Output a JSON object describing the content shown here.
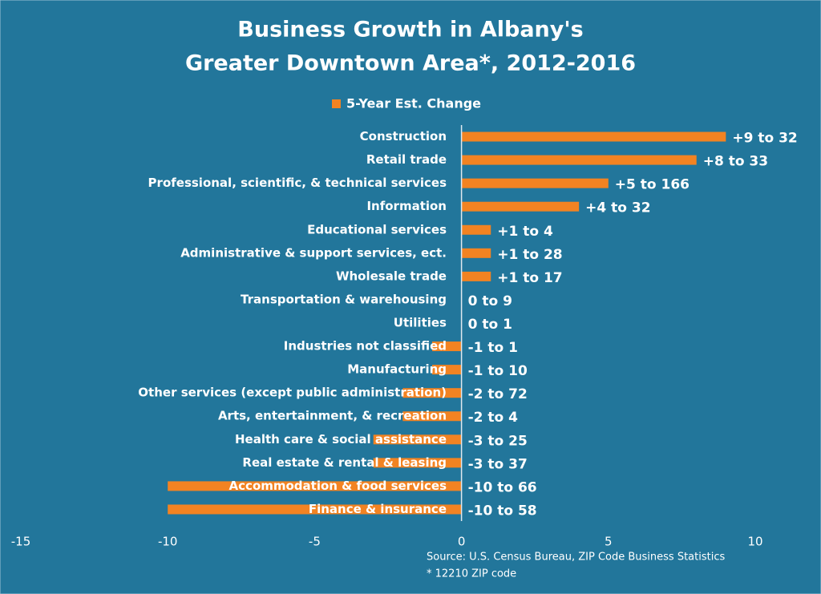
{
  "chart_data": {
    "type": "hbar",
    "title": [
      "Business Growth in Albany's",
      "Greater Downtown Area*, 2012-2016"
    ],
    "categories": [
      "Construction",
      "Retail trade",
      "Professional, scientific, & technical services",
      "Information",
      "Educational services",
      "Administrative & support services, ect.",
      "Wholesale trade",
      "Transportation & warehousing",
      "Utilities",
      "Industries not classified",
      "Manufacturing",
      "Other services (except public administration)",
      "Arts, entertainment, & recreation",
      "Health care & social assistance",
      "Real estate & rental & leasing",
      "Accommodation & food services",
      "Finance & insurance"
    ],
    "series": [
      {
        "name": "5-Year Est. Change",
        "color": "#f28322",
        "values": [
          9,
          8,
          5,
          4,
          1,
          1,
          1,
          0,
          0,
          -1,
          -1,
          -2,
          -2,
          -3,
          -3,
          -10,
          -10
        ],
        "value_labels": [
          "+9 to 32",
          "+8 to 33",
          "+5 to 166",
          "+4 to 32",
          "+1 to 4",
          "+1 to 28",
          "+1 to 17",
          "0 to 9",
          "0 to 1",
          "-1 to 1",
          "-1 to 10",
          "-2 to 72",
          "-2 to 4",
          "-3 to 25",
          "-3 to 37",
          "-10 to 66",
          "-10 to 58"
        ]
      }
    ],
    "xlim": [
      -15,
      10
    ],
    "xticks": [
      -15,
      -10,
      -5,
      0,
      5,
      10
    ],
    "annotations": [
      "Source: U.S. Census Bureau, ZIP Code Business Statistics",
      "* 12210 ZIP code"
    ]
  }
}
